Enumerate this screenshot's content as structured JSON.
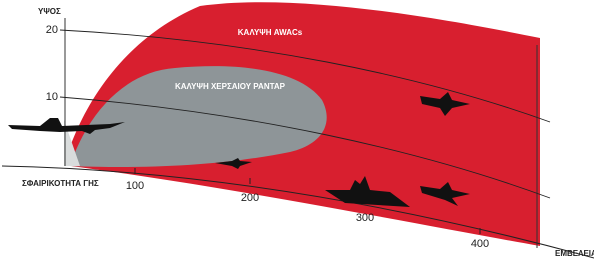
{
  "y_axis": {
    "title": "ΥΨΟΣ",
    "ticks": [
      "20",
      "10"
    ]
  },
  "x_axis": {
    "title": "ΕΜΒΕΛΕΙΑ",
    "ticks": [
      "100",
      "200",
      "300",
      "400"
    ]
  },
  "labels": {
    "awacs": "ΚΑΛΥΨΗ AWACs",
    "ground_radar": "ΚΑΛΥΨΗ ΧΕΡΣΑΙΟΥ ΡΑΝΤΑΡ",
    "earth": "ΣΦΑΙΡΙΚΟΤΗΤΑ ΓΗΣ"
  }
}
